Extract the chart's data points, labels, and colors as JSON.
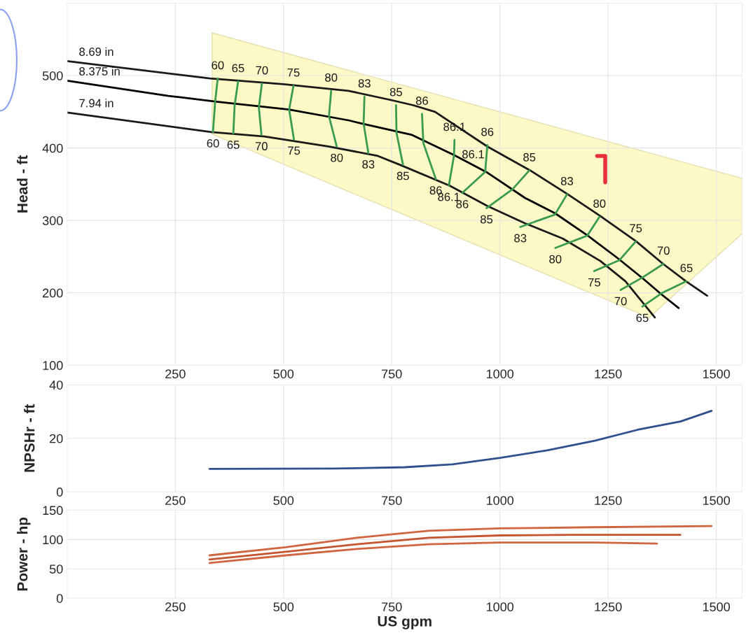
{
  "chart_data": [
    {
      "type": "line",
      "ylabel": "Head - ft",
      "xlim": [
        0,
        1560
      ],
      "xticks": [
        250,
        500,
        750,
        1000,
        1250,
        1500
      ],
      "ylim": [
        100,
        600
      ],
      "yticks": [
        100,
        200,
        300,
        400,
        500
      ],
      "grid": true,
      "series": [
        {
          "type": "area",
          "color": "#fcf9c6",
          "x": [
            335,
            1345,
            1560,
            1560,
            335
          ],
          "values": [
            419,
            166,
            282,
            358,
            559
          ]
        },
        {
          "name": "8.69 in",
          "color": "#1a1a1a",
          "x": [
            0,
            330,
            500,
            650,
            750,
            800,
            850,
            971,
            1070,
            1157,
            1232,
            1315,
            1377,
            1430,
            1479
          ],
          "values": [
            520,
            496,
            488,
            479,
            466,
            459,
            450,
            402,
            369,
            336,
            306,
            271,
            240,
            216,
            196
          ]
        },
        {
          "name": "8.375 in",
          "color": "#000000",
          "x": [
            0,
            234,
            345,
            513,
            652,
            679,
            797,
            895,
            971,
            1058,
            1127,
            1203,
            1274,
            1332,
            1373,
            1413
          ],
          "values": [
            493,
            472,
            464,
            453,
            438,
            434,
            418,
            390,
            366,
            331,
            310,
            279,
            247,
            219,
            198,
            179
          ]
        },
        {
          "name": "7.94 in",
          "color": "#1a1a1a",
          "x": [
            0,
            334,
            456,
            606,
            718,
            768,
            884,
            971,
            1058,
            1145,
            1232,
            1290,
            1358
          ],
          "values": [
            449,
            422,
            416,
            402,
            389,
            377,
            348,
            320,
            296,
            275,
            244,
            216,
            166
          ]
        },
        {
          "color": "#3a9a50",
          "x": [
            348,
            342,
            337
          ],
          "values": [
            496,
            464,
            422
          ]
        },
        {
          "color": "#3a9a50",
          "x": [
            395,
            387,
            384
          ],
          "values": [
            492,
            459,
            420
          ]
        },
        {
          "color": "#3a9a50",
          "x": [
            450,
            443,
            449
          ],
          "values": [
            489,
            456,
            418
          ]
        },
        {
          "color": "#3a9a50",
          "x": [
            523,
            513,
            524
          ],
          "values": [
            486,
            453,
            412
          ]
        },
        {
          "color": "#3a9a50",
          "x": [
            610,
            605,
            623
          ],
          "values": [
            479,
            444,
            402
          ]
        },
        {
          "color": "#3a9a50",
          "x": [
            687,
            685,
            696
          ],
          "values": [
            471,
            434,
            393
          ]
        },
        {
          "color": "#3a9a50",
          "x": [
            760,
            761,
            776
          ],
          "values": [
            459,
            421,
            377
          ]
        },
        {
          "color": "#3a9a50",
          "x": [
            820,
            823,
            852
          ],
          "values": [
            447,
            407,
            357
          ]
        },
        {
          "color": "#3a9a50",
          "x": [
            895,
            894,
            882
          ],
          "values": [
            411,
            390,
            348
          ]
        },
        {
          "color": "#3a9a50",
          "x": [
            971,
            966,
            913
          ],
          "values": [
            404,
            367,
            338
          ]
        },
        {
          "color": "#3a9a50",
          "x": [
            1068,
            1029,
            969
          ],
          "values": [
            369,
            343,
            317
          ]
        },
        {
          "color": "#3a9a50",
          "x": [
            1155,
            1127,
            1047
          ],
          "values": [
            336,
            308,
            291
          ]
        },
        {
          "color": "#3a9a50",
          "x": [
            1230,
            1202,
            1128
          ],
          "values": [
            305,
            279,
            262
          ]
        },
        {
          "color": "#3a9a50",
          "x": [
            1314,
            1276,
            1218
          ],
          "values": [
            271,
            245,
            230
          ]
        },
        {
          "color": "#3a9a50",
          "x": [
            1378,
            1329,
            1279
          ],
          "values": [
            240,
            221,
            204
          ]
        },
        {
          "color": "#3a9a50",
          "x": [
            1431,
            1375,
            1329
          ],
          "values": [
            216,
            200,
            181
          ]
        }
      ],
      "annotations": [
        {
          "text": "60",
          "x": 348,
          "y": 496
        },
        {
          "text": "65",
          "x": 395,
          "y": 492
        },
        {
          "text": "70",
          "x": 450,
          "y": 489
        },
        {
          "text": "75",
          "x": 523,
          "y": 486
        },
        {
          "text": "80",
          "x": 610,
          "y": 479
        },
        {
          "text": "83",
          "x": 687,
          "y": 471
        },
        {
          "text": "85",
          "x": 760,
          "y": 459
        },
        {
          "text": "86",
          "x": 820,
          "y": 447
        },
        {
          "text": "86.1",
          "x": 895,
          "y": 411
        },
        {
          "text": "86",
          "x": 971,
          "y": 404
        },
        {
          "text": "85",
          "x": 1068,
          "y": 369
        },
        {
          "text": "83",
          "x": 1155,
          "y": 336
        },
        {
          "text": "80",
          "x": 1230,
          "y": 305
        },
        {
          "text": "75",
          "x": 1314,
          "y": 271
        },
        {
          "text": "70",
          "x": 1378,
          "y": 240
        },
        {
          "text": "65",
          "x": 1431,
          "y": 216
        },
        {
          "text": "60",
          "x": 337,
          "y": 422
        },
        {
          "text": "65",
          "x": 384,
          "y": 420
        },
        {
          "text": "70",
          "x": 449,
          "y": 418
        },
        {
          "text": "75",
          "x": 524,
          "y": 412
        },
        {
          "text": "80",
          "x": 623,
          "y": 402
        },
        {
          "text": "83",
          "x": 696,
          "y": 393
        },
        {
          "text": "85",
          "x": 776,
          "y": 377
        },
        {
          "text": "86.1",
          "x": 894,
          "y": 390
        },
        {
          "text": "86",
          "x": 852,
          "y": 357
        },
        {
          "text": "86.1",
          "x": 882,
          "y": 348
        },
        {
          "text": "86",
          "x": 913,
          "y": 338
        },
        {
          "text": "85",
          "x": 969,
          "y": 317
        },
        {
          "text": "83",
          "x": 1047,
          "y": 291
        },
        {
          "text": "80",
          "x": 1128,
          "y": 262
        },
        {
          "text": "75",
          "x": 1218,
          "y": 230
        },
        {
          "text": "70",
          "x": 1279,
          "y": 204
        },
        {
          "text": "65",
          "x": 1329,
          "y": 181
        }
      ]
    },
    {
      "type": "line",
      "ylabel": "NPSHr - ft",
      "xlim": [
        0,
        1560
      ],
      "xticks": [
        250,
        500,
        750,
        1000,
        1250,
        1500
      ],
      "ylim": [
        0,
        40
      ],
      "yticks": [
        0,
        20,
        40
      ],
      "grid": true,
      "series": [
        {
          "color": "#2f4f8f",
          "x": [
            329,
            615,
            780,
            890,
            1000,
            1109,
            1219,
            1318,
            1417,
            1489
          ],
          "values": [
            8.6,
            8.7,
            9.2,
            10.3,
            12.7,
            15.5,
            19.1,
            23.2,
            26.3,
            30.3
          ]
        }
      ]
    },
    {
      "type": "line",
      "ylabel": "Power - hp",
      "xlabel": "US gpm",
      "xlim": [
        0,
        1560
      ],
      "xticks": [
        250,
        500,
        750,
        1000,
        1250,
        1500
      ],
      "ylim": [
        0,
        150
      ],
      "yticks": [
        0,
        50,
        100,
        150
      ],
      "grid": true,
      "series": [
        {
          "color": "#d0653f",
          "x": [
            329,
            505,
            669,
            835,
            1000,
            1219,
            1489
          ],
          "values": [
            73,
            87,
            103,
            115,
            119,
            121,
            123
          ]
        },
        {
          "color": "#c4552e",
          "x": [
            329,
            505,
            669,
            835,
            1000,
            1165,
            1417
          ],
          "values": [
            66,
            79,
            92,
            103,
            107,
            108,
            108
          ]
        },
        {
          "color": "#d0653f",
          "x": [
            329,
            505,
            669,
            835,
            1000,
            1219,
            1363
          ],
          "values": [
            60,
            73,
            84,
            92,
            95,
            95,
            93
          ]
        }
      ]
    }
  ]
}
